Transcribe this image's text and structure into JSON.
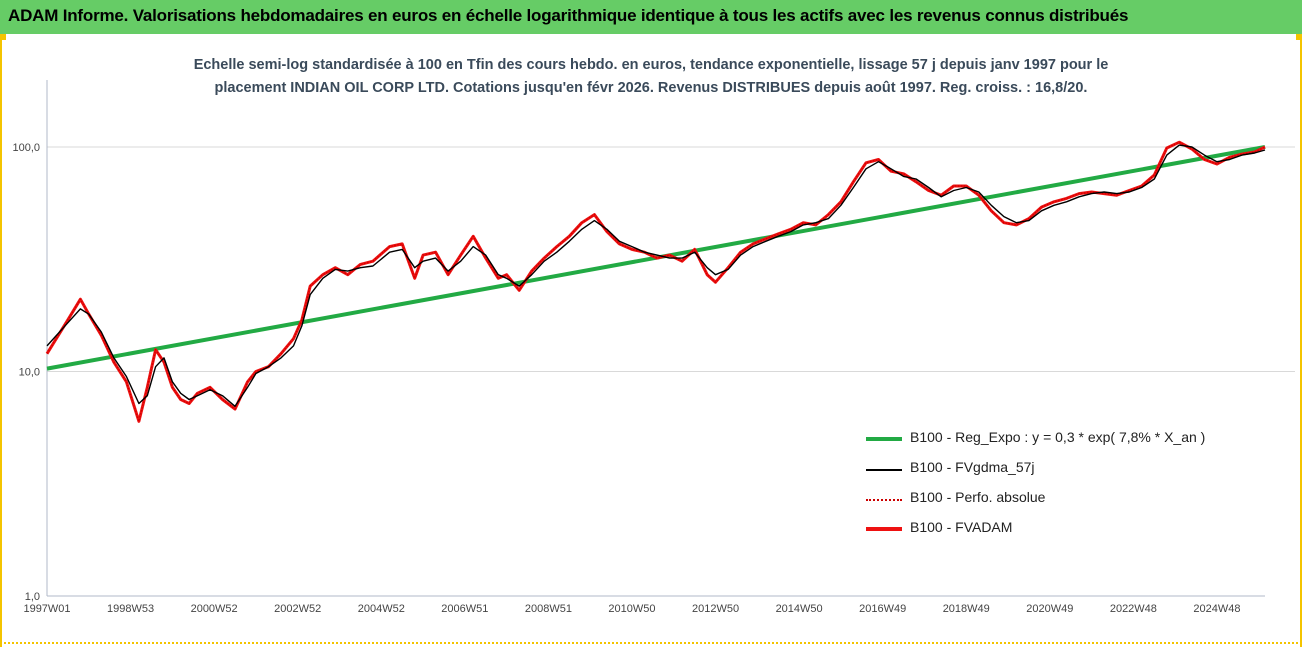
{
  "header": {
    "title": "ADAM Informe. Valorisations hebdomadaires en euros en échelle logarithmique identique à tous les actifs avec les revenus connus distribués"
  },
  "chart_data": {
    "type": "line",
    "y_scale": "log",
    "title_lines": [
      "Echelle semi-log standardisée à 100 en Tfin des cours hebdo. en euros, tendance exponentielle, lissage 57 j depuis janv 1997 pour le",
      "placement INDIAN OIL CORP LTD. Cotations jusqu'en févr 2026. Revenus DISTRIBUES depuis août 1997. Reg. croiss. : 16,8/20."
    ],
    "ylim": [
      1,
      220
    ],
    "y_ticks": [
      {
        "value": 100,
        "label": "100,0"
      },
      {
        "value": 10,
        "label": "10,0"
      },
      {
        "value": 1,
        "label": "1,0"
      }
    ],
    "xlim": [
      1997.0,
      2026.15
    ],
    "x_ticks": [
      {
        "value": 1997.0,
        "label": "1997W01"
      },
      {
        "value": 1999.0,
        "label": "1998W53"
      },
      {
        "value": 2001.0,
        "label": "2000W52"
      },
      {
        "value": 2003.0,
        "label": "2002W52"
      },
      {
        "value": 2005.0,
        "label": "2004W52"
      },
      {
        "value": 2007.0,
        "label": "2006W51"
      },
      {
        "value": 2009.0,
        "label": "2008W51"
      },
      {
        "value": 2011.0,
        "label": "2010W50"
      },
      {
        "value": 2013.0,
        "label": "2012W50"
      },
      {
        "value": 2015.0,
        "label": "2014W50"
      },
      {
        "value": 2017.0,
        "label": "2016W49"
      },
      {
        "value": 2019.0,
        "label": "2018W49"
      },
      {
        "value": 2021.0,
        "label": "2020W49"
      },
      {
        "value": 2023.0,
        "label": "2022W48"
      },
      {
        "value": 2025.0,
        "label": "2024W48"
      }
    ],
    "grid": "horizontal",
    "legend_position": "lower-right",
    "series": [
      {
        "name": "B100 - Reg_Expo : y = 0,3 * exp( 7,8% * X_an )",
        "color": "#22aa44",
        "style": "thick",
        "x": [
          1997.0,
          2026.15
        ],
        "y": [
          10.3,
          100.0
        ]
      },
      {
        "name": "B100 - FVgdma_57j",
        "color": "#000000",
        "style": "thin",
        "x": [
          1997.0,
          1997.5,
          1997.8,
          1998.0,
          1998.3,
          1998.6,
          1998.9,
          1999.2,
          1999.4,
          1999.6,
          1999.8,
          2000.0,
          2000.2,
          2000.4,
          2000.6,
          2000.9,
          2001.2,
          2001.5,
          2001.8,
          2002.0,
          2002.3,
          2002.6,
          2002.9,
          2003.1,
          2003.3,
          2003.6,
          2003.9,
          2004.2,
          2004.5,
          2004.8,
          2005.2,
          2005.5,
          2005.8,
          2006.0,
          2006.3,
          2006.6,
          2006.9,
          2007.2,
          2007.5,
          2007.8,
          2008.0,
          2008.3,
          2008.6,
          2008.9,
          2009.2,
          2009.5,
          2009.8,
          2010.1,
          2010.4,
          2010.7,
          2011.0,
          2011.3,
          2011.6,
          2011.9,
          2012.2,
          2012.5,
          2012.8,
          2013.0,
          2013.3,
          2013.6,
          2013.9,
          2014.2,
          2014.5,
          2014.8,
          2015.1,
          2015.4,
          2015.7,
          2016.0,
          2016.3,
          2016.6,
          2016.9,
          2017.2,
          2017.5,
          2017.8,
          2018.1,
          2018.4,
          2018.7,
          2019.0,
          2019.3,
          2019.6,
          2019.9,
          2020.2,
          2020.5,
          2020.8,
          2021.1,
          2021.4,
          2021.7,
          2022.0,
          2022.3,
          2022.6,
          2022.9,
          2023.2,
          2023.5,
          2023.8,
          2024.1,
          2024.4,
          2024.7,
          2025.0,
          2025.3,
          2025.6,
          2025.9,
          2026.15
        ],
        "y": [
          13.0,
          16.5,
          19.0,
          18.0,
          15.0,
          11.5,
          9.5,
          7.2,
          7.8,
          10.5,
          11.5,
          9.0,
          8.0,
          7.5,
          7.8,
          8.3,
          7.8,
          7.0,
          8.5,
          9.8,
          10.5,
          11.5,
          13.0,
          16.0,
          22.0,
          26.0,
          28.5,
          28.0,
          29.0,
          29.5,
          34.0,
          35.0,
          29.0,
          31.0,
          32.0,
          28.0,
          31.0,
          36.0,
          33.0,
          27.0,
          26.0,
          24.0,
          27.0,
          31.0,
          34.0,
          38.0,
          43.0,
          47.0,
          43.0,
          38.0,
          36.0,
          34.0,
          33.0,
          32.0,
          32.0,
          34.0,
          29.0,
          27.0,
          28.5,
          33.0,
          36.0,
          38.0,
          40.0,
          42.0,
          45.0,
          46.0,
          48.0,
          55.0,
          66.0,
          80.0,
          86.0,
          80.0,
          74.0,
          72.0,
          66.0,
          60.0,
          64.0,
          66.0,
          63.0,
          55.0,
          49.0,
          46.0,
          47.0,
          52.0,
          55.0,
          57.0,
          60.0,
          62.0,
          63.0,
          62.0,
          63.0,
          66.0,
          72.0,
          92.0,
          102.0,
          100.0,
          92.0,
          86.0,
          88.0,
          92.0,
          94.0,
          97.0
        ]
      },
      {
        "name": "B100 - Perfo. absolue",
        "color": "#cc0000",
        "style": "dotted",
        "x": [
          1997.0,
          1997.5,
          1997.8,
          1998.0,
          1998.3,
          1998.6,
          1998.9,
          1999.2,
          1999.4,
          1999.6,
          1999.8,
          2000.0,
          2000.2,
          2000.4,
          2000.6,
          2000.9,
          2001.2,
          2001.5,
          2001.8,
          2002.0,
          2002.3,
          2002.6,
          2002.9,
          2003.1,
          2003.3,
          2003.6,
          2003.9,
          2004.2,
          2004.5,
          2004.8,
          2005.2,
          2005.5,
          2005.8,
          2006.0,
          2006.3,
          2006.6,
          2006.9,
          2007.2,
          2007.5,
          2007.8,
          2008.0,
          2008.3,
          2008.6,
          2008.9,
          2009.2,
          2009.5,
          2009.8,
          2010.1,
          2010.4,
          2010.7,
          2011.0,
          2011.3,
          2011.6,
          2011.9,
          2012.2,
          2012.5,
          2012.8,
          2013.0,
          2013.3,
          2013.6,
          2013.9,
          2014.2,
          2014.5,
          2014.8,
          2015.1,
          2015.4,
          2015.7,
          2016.0,
          2016.3,
          2016.6,
          2016.9,
          2017.2,
          2017.5,
          2017.8,
          2018.1,
          2018.4,
          2018.7,
          2019.0,
          2019.3,
          2019.6,
          2019.9,
          2020.2,
          2020.5,
          2020.8,
          2021.1,
          2021.4,
          2021.7,
          2022.0,
          2022.3,
          2022.6,
          2022.9,
          2023.2,
          2023.5,
          2023.8,
          2024.1,
          2024.4,
          2024.7,
          2025.0,
          2025.3,
          2025.6,
          2025.9,
          2026.15
        ],
        "y": [
          12.0,
          17.0,
          21.0,
          18.0,
          14.5,
          11.0,
          9.0,
          6.0,
          8.5,
          12.5,
          11.0,
          8.5,
          7.5,
          7.2,
          8.0,
          8.5,
          7.5,
          6.8,
          9.0,
          10.0,
          10.5,
          12.0,
          14.0,
          17.0,
          24.0,
          27.0,
          29.0,
          27.0,
          30.0,
          31.0,
          36.0,
          37.0,
          26.0,
          33.0,
          34.0,
          27.0,
          33.0,
          40.0,
          32.0,
          26.0,
          27.0,
          23.0,
          28.0,
          32.0,
          36.0,
          40.0,
          46.0,
          50.0,
          42.0,
          37.0,
          35.0,
          34.0,
          32.0,
          33.0,
          31.0,
          35.0,
          27.0,
          25.0,
          29.0,
          34.0,
          37.0,
          39.0,
          41.0,
          43.0,
          46.0,
          45.0,
          50.0,
          57.0,
          70.0,
          85.0,
          88.0,
          78.0,
          76.0,
          70.0,
          64.0,
          61.0,
          67.0,
          67.0,
          61.0,
          52.0,
          46.0,
          45.0,
          48.0,
          54.0,
          57.0,
          59.0,
          62.0,
          63.0,
          62.0,
          61.0,
          64.0,
          67.0,
          75.0,
          99.0,
          105.0,
          98.0,
          88.0,
          84.0,
          90.0,
          93.0,
          95.0,
          100.0
        ]
      },
      {
        "name": "B100 - FVADAM",
        "color": "#ee1111",
        "style": "thick",
        "x": [
          1997.0,
          1997.5,
          1997.8,
          1998.0,
          1998.3,
          1998.6,
          1998.9,
          1999.2,
          1999.4,
          1999.6,
          1999.8,
          2000.0,
          2000.2,
          2000.4,
          2000.6,
          2000.9,
          2001.2,
          2001.5,
          2001.8,
          2002.0,
          2002.3,
          2002.6,
          2002.9,
          2003.1,
          2003.3,
          2003.6,
          2003.9,
          2004.2,
          2004.5,
          2004.8,
          2005.2,
          2005.5,
          2005.8,
          2006.0,
          2006.3,
          2006.6,
          2006.9,
          2007.2,
          2007.5,
          2007.8,
          2008.0,
          2008.3,
          2008.6,
          2008.9,
          2009.2,
          2009.5,
          2009.8,
          2010.1,
          2010.4,
          2010.7,
          2011.0,
          2011.3,
          2011.6,
          2011.9,
          2012.2,
          2012.5,
          2012.8,
          2013.0,
          2013.3,
          2013.6,
          2013.9,
          2014.2,
          2014.5,
          2014.8,
          2015.1,
          2015.4,
          2015.7,
          2016.0,
          2016.3,
          2016.6,
          2016.9,
          2017.2,
          2017.5,
          2017.8,
          2018.1,
          2018.4,
          2018.7,
          2019.0,
          2019.3,
          2019.6,
          2019.9,
          2020.2,
          2020.5,
          2020.8,
          2021.1,
          2021.4,
          2021.7,
          2022.0,
          2022.3,
          2022.6,
          2022.9,
          2023.2,
          2023.5,
          2023.8,
          2024.1,
          2024.4,
          2024.7,
          2025.0,
          2025.3,
          2025.6,
          2025.9,
          2026.15
        ],
        "y": [
          12.0,
          17.0,
          21.0,
          18.0,
          14.5,
          11.0,
          9.0,
          6.0,
          8.5,
          12.5,
          11.0,
          8.5,
          7.5,
          7.2,
          8.0,
          8.5,
          7.5,
          6.8,
          9.0,
          10.0,
          10.5,
          12.0,
          14.0,
          17.0,
          24.0,
          27.0,
          29.0,
          27.0,
          30.0,
          31.0,
          36.0,
          37.0,
          26.0,
          33.0,
          34.0,
          27.0,
          33.0,
          40.0,
          32.0,
          26.0,
          27.0,
          23.0,
          28.0,
          32.0,
          36.0,
          40.0,
          46.0,
          50.0,
          42.0,
          37.0,
          35.0,
          34.0,
          32.0,
          33.0,
          31.0,
          35.0,
          27.0,
          25.0,
          29.0,
          34.0,
          37.0,
          39.0,
          41.0,
          43.0,
          46.0,
          45.0,
          50.0,
          57.0,
          70.0,
          85.0,
          88.0,
          78.0,
          76.0,
          70.0,
          64.0,
          61.0,
          67.0,
          67.0,
          61.0,
          52.0,
          46.0,
          45.0,
          48.0,
          54.0,
          57.0,
          59.0,
          62.0,
          63.0,
          62.0,
          61.0,
          64.0,
          67.0,
          75.0,
          99.0,
          105.0,
          98.0,
          88.0,
          84.0,
          90.0,
          93.0,
          95.0,
          100.0
        ]
      }
    ]
  }
}
